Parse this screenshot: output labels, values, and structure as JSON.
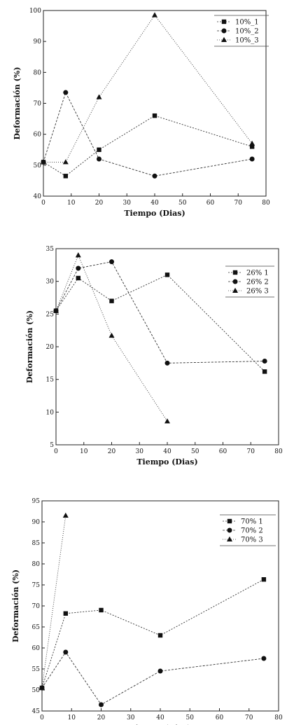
{
  "chart_data": [
    {
      "type": "line",
      "xlabel": "Tiempo (Dias)",
      "ylabel": "Deformación (%)",
      "xlim": [
        0,
        80
      ],
      "ylim": [
        40,
        100
      ],
      "xticks": [
        "0",
        "10",
        "20",
        "30",
        "40",
        "50",
        "60",
        "70",
        "80"
      ],
      "yticks": [
        "40",
        "50",
        "60",
        "70",
        "80",
        "90",
        "100"
      ],
      "legend": "top-right",
      "series": [
        {
          "name": "10%_1",
          "marker": "square",
          "x": [
            0,
            8,
            20,
            40,
            75
          ],
          "y": [
            51,
            46.5,
            55,
            66,
            56
          ]
        },
        {
          "name": "10%_2",
          "marker": "circle",
          "x": [
            0,
            8,
            20,
            40,
            75
          ],
          "y": [
            51,
            73.5,
            52,
            46.5,
            52
          ]
        },
        {
          "name": "10%_3",
          "marker": "triangle",
          "x": [
            0,
            8,
            20,
            40,
            75
          ],
          "y": [
            51,
            51,
            72,
            98.5,
            57
          ]
        }
      ]
    },
    {
      "type": "line",
      "xlabel": "Tiempo (Dias)",
      "ylabel": "Deformación (%)",
      "xlim": [
        0,
        80
      ],
      "ylim": [
        5,
        35
      ],
      "xticks": [
        "0",
        "10",
        "20",
        "30",
        "40",
        "50",
        "60",
        "70",
        "80"
      ],
      "yticks": [
        "5",
        "10",
        "15",
        "20",
        "25",
        "30",
        "35"
      ],
      "legend": "top-right",
      "series": [
        {
          "name": "26% 1",
          "marker": "square",
          "x": [
            0,
            8,
            20,
            40,
            75
          ],
          "y": [
            25.5,
            30.5,
            27,
            31,
            16.2
          ]
        },
        {
          "name": "26% 2",
          "marker": "circle",
          "x": [
            0,
            8,
            20,
            40,
            75
          ],
          "y": [
            25.5,
            32,
            33,
            17.5,
            17.8
          ]
        },
        {
          "name": "26% 3",
          "marker": "triangle",
          "x": [
            0,
            8,
            20,
            40
          ],
          "y": [
            25.5,
            34,
            21.7,
            8.6
          ]
        }
      ]
    },
    {
      "type": "line",
      "xlabel": "Tiempo (Dias)",
      "ylabel": "Deformación (%)",
      "xlim": [
        0,
        80
      ],
      "ylim": [
        45,
        95
      ],
      "xticks": [
        "0",
        "10",
        "20",
        "30",
        "40",
        "50",
        "60",
        "70",
        "80"
      ],
      "yticks": [
        "45",
        "50",
        "55",
        "60",
        "65",
        "70",
        "75",
        "80",
        "85",
        "90",
        "95"
      ],
      "legend": "top-right",
      "series": [
        {
          "name": "70% 1",
          "marker": "square",
          "x": [
            0,
            8,
            20,
            40,
            75
          ],
          "y": [
            50.5,
            68.2,
            69,
            63,
            76.3
          ]
        },
        {
          "name": "70% 2",
          "marker": "circle",
          "x": [
            0,
            8,
            20,
            40,
            75
          ],
          "y": [
            50.5,
            59,
            46.5,
            54.5,
            57.5
          ]
        },
        {
          "name": "70% 3",
          "marker": "triangle",
          "x": [
            0,
            8
          ],
          "y": [
            50.5,
            91.5
          ]
        }
      ]
    }
  ]
}
